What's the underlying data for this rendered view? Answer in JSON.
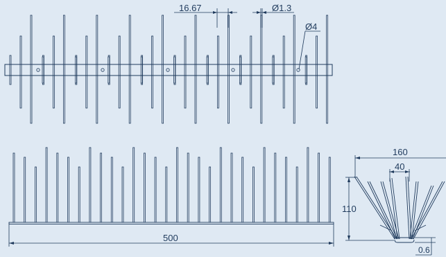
{
  "colors": {
    "background": "#dfe9f3",
    "line": "#1f3a5c"
  },
  "dimensions": {
    "pitch": "16.67",
    "wire_diameter": "Ø1.3",
    "hole_diameter": "Ø4",
    "length": "500",
    "width": "160",
    "base_width": "40",
    "height": "110",
    "base_thickness": "0.6"
  }
}
